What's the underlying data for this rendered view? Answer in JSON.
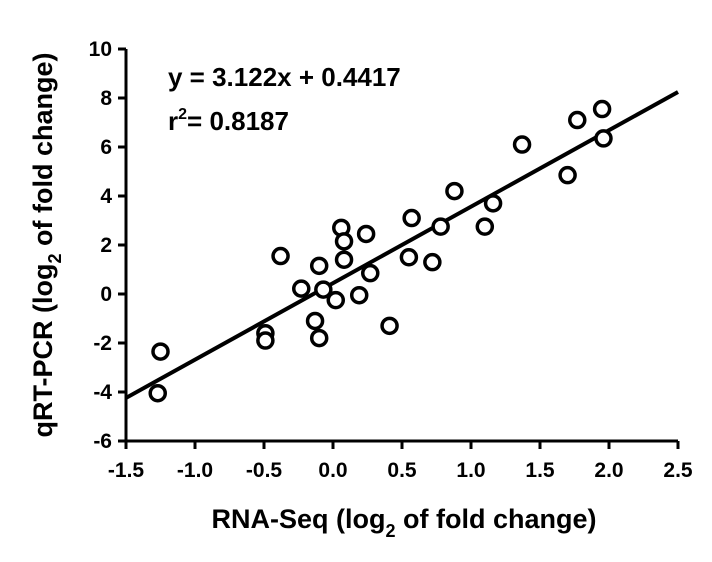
{
  "chart_data": {
    "type": "scatter",
    "title": "",
    "xlabel": {
      "pre": "RNA-Seq (log",
      "sub": "2",
      "post": " of fold change)"
    },
    "ylabel": {
      "pre": "qRT-PCR (log",
      "sub": "2",
      "post": " of fold change)"
    },
    "xlim": [
      -1.5,
      2.5
    ],
    "ylim": [
      -6,
      10
    ],
    "xticks": [
      "-1.5",
      "-1.0",
      "-0.5",
      "0.0",
      "0.5",
      "1.0",
      "1.5",
      "2.0",
      "2.5"
    ],
    "yticks": [
      "-6",
      "-4",
      "-2",
      "0",
      "2",
      "4",
      "6",
      "8",
      "10"
    ],
    "grid": false,
    "annotations": {
      "equation": "y = 3.122x + 0.4417",
      "r2_prefix": "r",
      "r2_sup": "2",
      "r2_suffix": "= 0.8187"
    },
    "trendline": {
      "slope": 3.122,
      "intercept": 0.4417,
      "x_range": [
        -1.5,
        2.5
      ]
    },
    "series": [
      {
        "marker": "open-circle",
        "points": [
          [
            -1.25,
            -2.35
          ],
          [
            -1.27,
            -4.05
          ],
          [
            -0.49,
            -1.6
          ],
          [
            -0.49,
            -1.9
          ],
          [
            -0.38,
            1.55
          ],
          [
            -0.23,
            0.22
          ],
          [
            -0.13,
            -1.1
          ],
          [
            -0.1,
            -1.8
          ],
          [
            -0.1,
            1.15
          ],
          [
            -0.07,
            0.18
          ],
          [
            0.02,
            -0.25
          ],
          [
            0.06,
            2.7
          ],
          [
            0.08,
            2.15
          ],
          [
            0.08,
            1.4
          ],
          [
            0.19,
            -0.05
          ],
          [
            0.24,
            2.45
          ],
          [
            0.27,
            0.85
          ],
          [
            0.41,
            -1.3
          ],
          [
            0.55,
            1.5
          ],
          [
            0.57,
            3.1
          ],
          [
            0.72,
            1.3
          ],
          [
            0.78,
            2.75
          ],
          [
            0.88,
            4.2
          ],
          [
            1.1,
            2.75
          ],
          [
            1.16,
            3.7
          ],
          [
            1.37,
            6.1
          ],
          [
            1.7,
            4.85
          ],
          [
            1.77,
            7.1
          ],
          [
            1.95,
            7.55
          ],
          [
            1.96,
            6.35
          ]
        ]
      }
    ]
  }
}
